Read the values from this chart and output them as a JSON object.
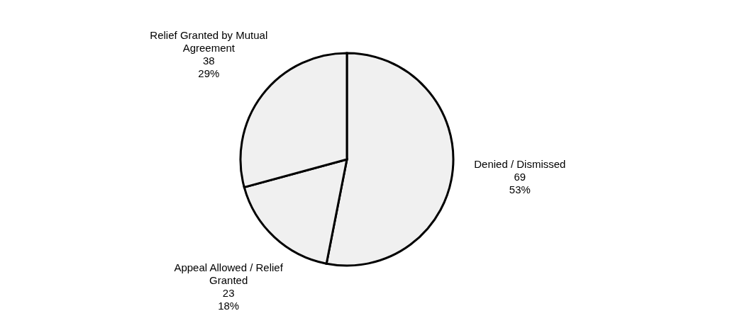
{
  "chart_data": {
    "type": "pie",
    "categories": [
      "Denied / Dismissed",
      "Appeal Allowed / Relief Granted",
      "Relief Granted by Mutual Agreement"
    ],
    "values": [
      69,
      23,
      38
    ],
    "value_labels": [
      "69\n53%",
      "23\n18%",
      "38\n29%"
    ],
    "colors": [
      "#f0f0f0",
      "#f0f0f0",
      "#f0f0f0"
    ]
  }
}
